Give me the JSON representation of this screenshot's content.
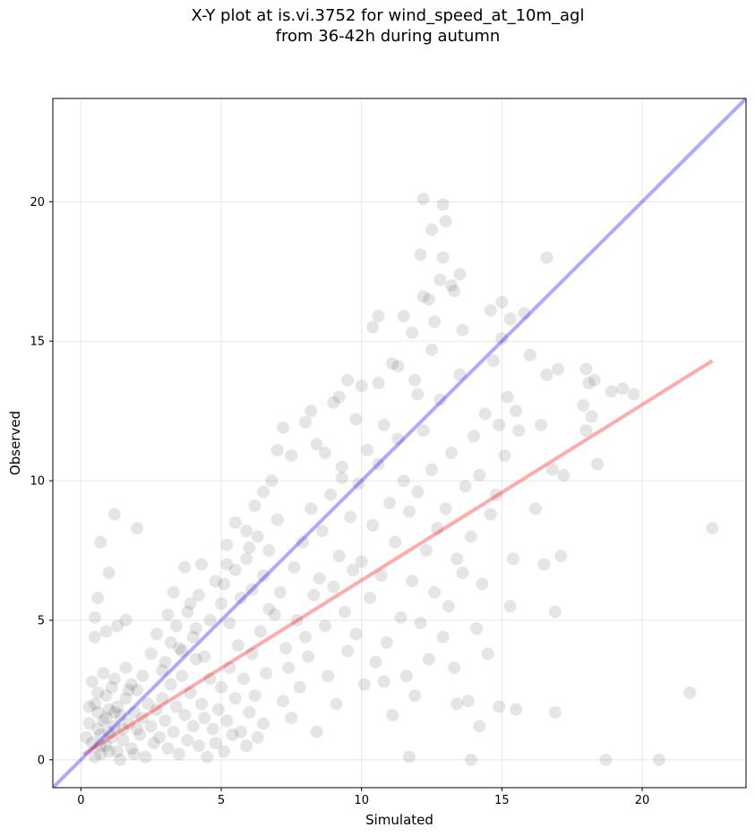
{
  "chart_data": {
    "type": "scatter",
    "title_lines": [
      "X-Y plot at is.vi.3752 for wind_speed_at_10m_agl",
      "from 36-42h during autumn"
    ],
    "xlabel": "Simulated",
    "ylabel": "Observed",
    "xlim": [
      -1.0,
      23.7
    ],
    "ylim": [
      -1.0,
      23.7
    ],
    "xticks": [
      0,
      5,
      10,
      15,
      20
    ],
    "yticks": [
      0,
      5,
      10,
      15,
      20
    ],
    "grid": true,
    "point_color": "#000000",
    "point_opacity": 0.1,
    "reference_lines": [
      {
        "kind": "one-to-one",
        "color": "#0000ff",
        "opacity": 0.33,
        "x": [
          -1.0,
          23.7
        ],
        "y": [
          -1.0,
          23.7
        ]
      },
      {
        "kind": "fit",
        "color": "#ff0000",
        "opacity": 0.33,
        "x": [
          0.1,
          22.5
        ],
        "y": [
          0.2,
          14.3
        ]
      }
    ],
    "series": [
      {
        "points": [
          [
            0.4,
            0.6
          ],
          [
            0.6,
            1.1
          ],
          [
            0.7,
            0.9
          ],
          [
            0.8,
            1.4
          ],
          [
            0.9,
            0.5
          ],
          [
            1.0,
            1.8
          ],
          [
            1.1,
            0.8
          ],
          [
            1.2,
            1.2
          ],
          [
            1.3,
            0.3
          ],
          [
            1.4,
            1.6
          ],
          [
            0.5,
            2.0
          ],
          [
            0.6,
            1.7
          ],
          [
            0.7,
            0.2
          ],
          [
            0.9,
            2.3
          ],
          [
            1.0,
            1.0
          ],
          [
            1.1,
            2.6
          ],
          [
            1.3,
            1.9
          ],
          [
            1.5,
            0.7
          ],
          [
            1.6,
            2.2
          ],
          [
            1.7,
            1.3
          ],
          [
            1.8,
            0.4
          ],
          [
            1.9,
            1.7
          ],
          [
            2.0,
            2.5
          ],
          [
            2.1,
            0.9
          ],
          [
            2.2,
            1.5
          ],
          [
            2.3,
            0.1
          ],
          [
            2.4,
            2.0
          ],
          [
            2.5,
            1.2
          ],
          [
            2.6,
            0.6
          ],
          [
            2.7,
            1.8
          ],
          [
            0.3,
            1.3
          ],
          [
            0.4,
            2.8
          ],
          [
            0.5,
            0.1
          ],
          [
            0.8,
            3.1
          ],
          [
            0.9,
            1.5
          ],
          [
            1.2,
            2.9
          ],
          [
            1.4,
            0.0
          ],
          [
            1.6,
            3.3
          ],
          [
            1.8,
            2.7
          ],
          [
            2.0,
            1.1
          ],
          [
            0.2,
            0.8
          ],
          [
            0.3,
            1.9
          ],
          [
            0.6,
            2.4
          ],
          [
            0.7,
            0.5
          ],
          [
            1.0,
            0.3
          ],
          [
            1.2,
            1.7
          ],
          [
            1.5,
            1.1
          ],
          [
            1.7,
            2.5
          ],
          [
            1.9,
            0.2
          ],
          [
            2.2,
            3.0
          ],
          [
            2.8,
            0.8
          ],
          [
            2.9,
            2.2
          ],
          [
            3.0,
            1.4
          ],
          [
            3.1,
            0.4
          ],
          [
            3.2,
            2.7
          ],
          [
            3.3,
            1.0
          ],
          [
            3.4,
            1.9
          ],
          [
            3.5,
            0.2
          ],
          [
            3.6,
            3.0
          ],
          [
            3.7,
            1.6
          ],
          [
            3.8,
            0.7
          ],
          [
            3.9,
            2.4
          ],
          [
            4.0,
            1.2
          ],
          [
            4.1,
            3.6
          ],
          [
            4.2,
            0.5
          ],
          [
            4.3,
            2.0
          ],
          [
            4.4,
            1.5
          ],
          [
            4.5,
            0.1
          ],
          [
            4.6,
            2.9
          ],
          [
            4.7,
            1.1
          ],
          [
            3.0,
            3.5
          ],
          [
            3.2,
            4.2
          ],
          [
            3.4,
            4.8
          ],
          [
            3.6,
            3.9
          ],
          [
            3.8,
            5.3
          ],
          [
            4.0,
            4.4
          ],
          [
            4.2,
            5.9
          ],
          [
            4.4,
            3.7
          ],
          [
            4.6,
            5.0
          ],
          [
            4.8,
            6.4
          ],
          [
            2.5,
            3.8
          ],
          [
            2.7,
            4.5
          ],
          [
            2.9,
            3.2
          ],
          [
            3.1,
            5.2
          ],
          [
            3.3,
            6.0
          ],
          [
            3.5,
            4.0
          ],
          [
            3.7,
            6.9
          ],
          [
            3.9,
            5.6
          ],
          [
            4.1,
            4.7
          ],
          [
            4.3,
            7.0
          ],
          [
            4.8,
            0.6
          ],
          [
            4.9,
            1.8
          ],
          [
            5.0,
            2.6
          ],
          [
            5.1,
            0.3
          ],
          [
            5.2,
            1.4
          ],
          [
            5.3,
            3.3
          ],
          [
            5.4,
            0.9
          ],
          [
            5.5,
            2.2
          ],
          [
            5.6,
            4.1
          ],
          [
            5.7,
            1.0
          ],
          [
            5.8,
            2.9
          ],
          [
            5.9,
            0.5
          ],
          [
            6.0,
            1.7
          ],
          [
            6.1,
            3.8
          ],
          [
            6.2,
            2.3
          ],
          [
            6.3,
            0.8
          ],
          [
            6.4,
            4.6
          ],
          [
            6.5,
            1.3
          ],
          [
            6.6,
            3.1
          ],
          [
            6.7,
            5.4
          ],
          [
            5.0,
            5.6
          ],
          [
            5.1,
            6.3
          ],
          [
            5.2,
            7.7
          ],
          [
            5.3,
            4.9
          ],
          [
            5.5,
            6.8
          ],
          [
            5.7,
            5.8
          ],
          [
            5.9,
            7.2
          ],
          [
            6.1,
            6.1
          ],
          [
            6.3,
            8.0
          ],
          [
            6.5,
            6.6
          ],
          [
            6.7,
            7.5
          ],
          [
            6.9,
            5.2
          ],
          [
            7.0,
            8.6
          ],
          [
            7.1,
            6.0
          ],
          [
            7.2,
            2.1
          ],
          [
            7.3,
            4.0
          ],
          [
            7.4,
            3.3
          ],
          [
            7.5,
            1.5
          ],
          [
            7.6,
            6.9
          ],
          [
            7.7,
            5.0
          ],
          [
            7.8,
            2.6
          ],
          [
            7.9,
            7.8
          ],
          [
            8.0,
            4.4
          ],
          [
            8.1,
            3.7
          ],
          [
            8.2,
            9.0
          ],
          [
            8.3,
            5.9
          ],
          [
            8.4,
            1.0
          ],
          [
            8.5,
            6.5
          ],
          [
            8.6,
            8.2
          ],
          [
            8.7,
            4.8
          ],
          [
            8.8,
            3.0
          ],
          [
            8.9,
            9.5
          ],
          [
            9.0,
            6.2
          ],
          [
            9.1,
            2.0
          ],
          [
            9.2,
            7.3
          ],
          [
            9.3,
            10.1
          ],
          [
            9.4,
            5.3
          ],
          [
            9.5,
            3.9
          ],
          [
            9.6,
            8.7
          ],
          [
            9.7,
            6.8
          ],
          [
            8.0,
            12.1
          ],
          [
            8.2,
            12.5
          ],
          [
            8.4,
            11.3
          ],
          [
            9.0,
            12.8
          ],
          [
            9.2,
            13.0
          ],
          [
            9.5,
            13.6
          ],
          [
            9.8,
            12.2
          ],
          [
            10.0,
            13.4
          ],
          [
            8.7,
            11.0
          ],
          [
            9.3,
            10.5
          ],
          [
            9.8,
            4.5
          ],
          [
            9.9,
            9.9
          ],
          [
            10.0,
            7.1
          ],
          [
            10.1,
            2.7
          ],
          [
            10.2,
            11.1
          ],
          [
            10.3,
            5.8
          ],
          [
            10.4,
            8.4
          ],
          [
            10.5,
            3.5
          ],
          [
            10.6,
            10.6
          ],
          [
            10.7,
            6.6
          ],
          [
            10.8,
            12.0
          ],
          [
            10.9,
            4.2
          ],
          [
            11.0,
            9.2
          ],
          [
            11.1,
            1.6
          ],
          [
            11.2,
            7.8
          ],
          [
            11.3,
            11.5
          ],
          [
            11.4,
            5.1
          ],
          [
            11.5,
            10.0
          ],
          [
            11.6,
            3.0
          ],
          [
            11.7,
            8.9
          ],
          [
            10.4,
            15.5
          ],
          [
            10.6,
            15.9
          ],
          [
            11.3,
            14.1
          ],
          [
            11.5,
            15.9
          ],
          [
            11.8,
            15.3
          ],
          [
            11.9,
            13.6
          ],
          [
            12.0,
            13.1
          ],
          [
            12.2,
            16.6
          ],
          [
            12.1,
            18.1
          ],
          [
            12.2,
            20.1
          ],
          [
            12.5,
            19.0
          ],
          [
            12.8,
            17.2
          ],
          [
            12.9,
            19.9
          ],
          [
            13.0,
            19.3
          ],
          [
            12.9,
            18.0
          ],
          [
            13.2,
            17.0
          ],
          [
            13.3,
            16.8
          ],
          [
            13.5,
            17.4
          ],
          [
            12.4,
            16.5
          ],
          [
            12.6,
            15.7
          ],
          [
            11.8,
            6.4
          ],
          [
            11.9,
            2.3
          ],
          [
            12.0,
            9.6
          ],
          [
            12.1,
            4.9
          ],
          [
            12.2,
            11.8
          ],
          [
            12.3,
            7.5
          ],
          [
            12.4,
            3.6
          ],
          [
            12.5,
            10.4
          ],
          [
            12.6,
            6.0
          ],
          [
            12.7,
            8.3
          ],
          [
            12.8,
            12.9
          ],
          [
            12.9,
            4.4
          ],
          [
            13.0,
            9.0
          ],
          [
            13.1,
            5.5
          ],
          [
            13.2,
            11.0
          ],
          [
            13.3,
            3.3
          ],
          [
            13.4,
            7.2
          ],
          [
            13.5,
            13.8
          ],
          [
            13.6,
            6.7
          ],
          [
            13.7,
            9.8
          ],
          [
            13.8,
            2.1
          ],
          [
            13.9,
            8.0
          ],
          [
            14.0,
            11.6
          ],
          [
            14.1,
            4.7
          ],
          [
            14.2,
            10.2
          ],
          [
            14.3,
            6.3
          ],
          [
            14.4,
            12.4
          ],
          [
            14.5,
            3.8
          ],
          [
            14.6,
            8.8
          ],
          [
            14.7,
            14.3
          ],
          [
            14.8,
            9.5
          ],
          [
            14.9,
            12.0
          ],
          [
            15.0,
            15.1
          ],
          [
            15.1,
            10.9
          ],
          [
            15.2,
            13.0
          ],
          [
            15.3,
            15.8
          ],
          [
            15.4,
            7.2
          ],
          [
            15.5,
            12.5
          ],
          [
            15.6,
            11.8
          ],
          [
            15.8,
            16.0
          ],
          [
            16.0,
            14.5
          ],
          [
            16.2,
            9.0
          ],
          [
            16.4,
            12.0
          ],
          [
            16.6,
            13.8
          ],
          [
            16.8,
            10.4
          ],
          [
            17.0,
            14.0
          ],
          [
            17.2,
            10.2
          ],
          [
            16.5,
            7.0
          ],
          [
            16.9,
            5.3
          ],
          [
            17.1,
            7.3
          ],
          [
            17.9,
            12.7
          ],
          [
            18.0,
            14.0
          ],
          [
            18.1,
            13.5
          ],
          [
            18.2,
            12.3
          ],
          [
            18.3,
            13.6
          ],
          [
            18.0,
            11.8
          ],
          [
            18.4,
            10.6
          ],
          [
            19.3,
            13.3
          ],
          [
            19.7,
            13.1
          ],
          [
            18.9,
            13.2
          ],
          [
            14.9,
            1.9
          ],
          [
            15.5,
            1.8
          ],
          [
            13.9,
            0.0
          ],
          [
            16.9,
            1.7
          ],
          [
            15.3,
            5.5
          ],
          [
            14.2,
            1.2
          ],
          [
            13.4,
            2.0
          ],
          [
            11.7,
            0.1
          ],
          [
            10.8,
            2.8
          ],
          [
            20.6,
            0.0
          ],
          [
            1.2,
            8.8
          ],
          [
            2.0,
            8.3
          ],
          [
            0.7,
            7.8
          ],
          [
            1.0,
            6.7
          ],
          [
            0.6,
            5.8
          ],
          [
            0.5,
            5.1
          ],
          [
            1.6,
            5.0
          ],
          [
            0.5,
            4.4
          ],
          [
            1.3,
            4.8
          ],
          [
            0.9,
            4.6
          ],
          [
            21.7,
            2.4
          ],
          [
            22.5,
            8.3
          ],
          [
            18.7,
            0.0
          ],
          [
            16.6,
            18.0
          ],
          [
            15.0,
            16.4
          ],
          [
            14.6,
            16.1
          ],
          [
            13.6,
            15.4
          ],
          [
            12.5,
            14.7
          ],
          [
            11.1,
            14.2
          ],
          [
            10.6,
            13.5
          ],
          [
            6.5,
            9.6
          ],
          [
            6.8,
            10.0
          ],
          [
            7.2,
            11.9
          ],
          [
            7.5,
            10.9
          ],
          [
            7.0,
            11.1
          ],
          [
            5.9,
            8.2
          ],
          [
            6.2,
            9.1
          ],
          [
            6.0,
            7.6
          ],
          [
            5.5,
            8.5
          ],
          [
            5.2,
            7.0
          ]
        ]
      }
    ]
  }
}
